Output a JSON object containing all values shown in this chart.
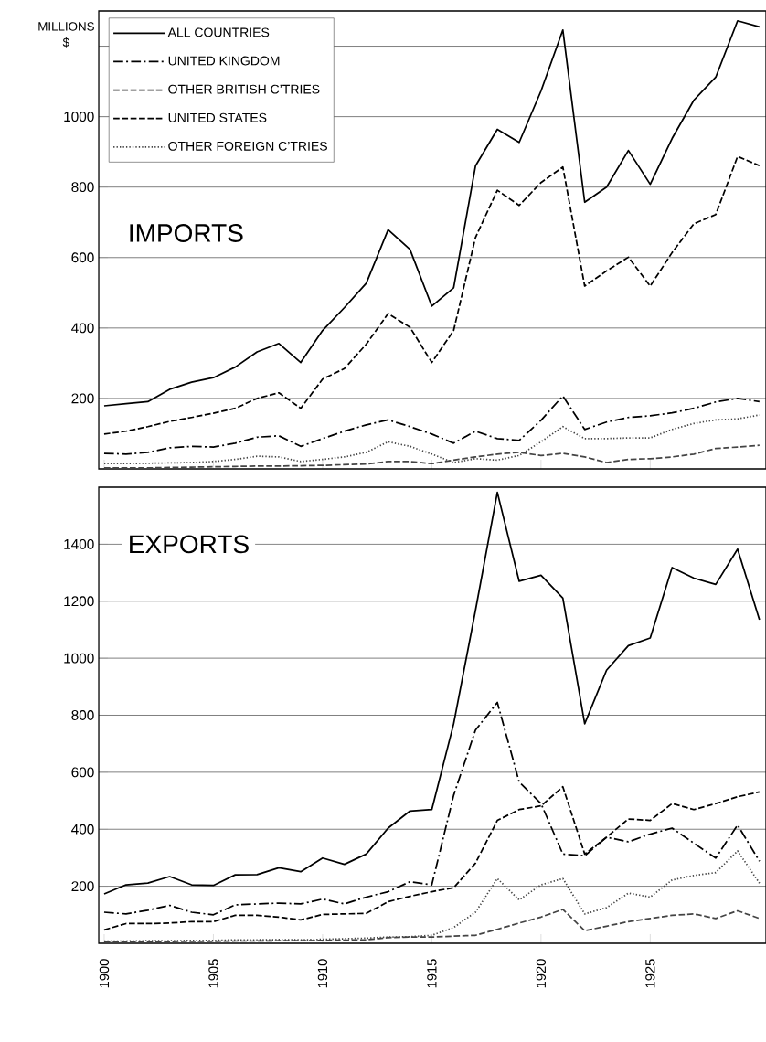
{
  "chart_data": [
    {
      "type": "line",
      "title": "IMPORTS",
      "ylabel": "MILLIONS $",
      "x": [
        1900,
        1901,
        1902,
        1903,
        1904,
        1905,
        1906,
        1907,
        1908,
        1909,
        1910,
        1911,
        1912,
        1913,
        1914,
        1915,
        1916,
        1917,
        1918,
        1919,
        1920,
        1921,
        1922,
        1923,
        1924,
        1925,
        1926,
        1927,
        1928,
        1929,
        1930
      ],
      "xlim": [
        1899.75,
        1930.3
      ],
      "ylim": [
        0,
        1300
      ],
      "xticks": [
        1900,
        1905,
        1910,
        1915,
        1920,
        1925
      ],
      "yticks": [
        200,
        400,
        600,
        800,
        1000,
        {
          "value": 1200,
          "label": null
        }
      ],
      "tick_labels": "y",
      "grid": "y",
      "legend": "top left",
      "series": [
        {
          "name": "ALL COUNTRIES",
          "color": "#000000",
          "line_style": "solid",
          "values": [
            179,
            185,
            191,
            226,
            246,
            259,
            289,
            332,
            356,
            302,
            393,
            458,
            527,
            679,
            623,
            462,
            514,
            860,
            964,
            927,
            1073,
            1246,
            757,
            800,
            904,
            808,
            938,
            1047,
            1112,
            1272,
            1255
          ]
        },
        {
          "name": "UNITED KINGDOM",
          "color": "#000000",
          "line_style": "dashdot",
          "values": [
            44,
            42,
            47,
            60,
            64,
            62,
            73,
            90,
            94,
            64,
            86,
            107,
            125,
            139,
            120,
            99,
            73,
            107,
            86,
            81,
            138,
            207,
            112,
            133,
            146,
            151,
            159,
            172,
            190,
            200,
            191
          ]
        },
        {
          "name": "OTHER BRITISH C’TRIES",
          "color": "#444444",
          "line_style": "dashed",
          "values": [
            3,
            3,
            3,
            4,
            5,
            6,
            7,
            8,
            8,
            9,
            10,
            12,
            14,
            21,
            21,
            15,
            25,
            34,
            42,
            47,
            38,
            44,
            34,
            18,
            27,
            29,
            34,
            42,
            58,
            62,
            67
          ]
        },
        {
          "name": "UNITED STATES",
          "color": "#000000",
          "line_style": "dashed",
          "values": [
            99,
            107,
            120,
            135,
            146,
            158,
            172,
            200,
            216,
            172,
            255,
            285,
            354,
            441,
            402,
            302,
            393,
            657,
            791,
            748,
            813,
            857,
            519,
            562,
            601,
            519,
            614,
            696,
            722,
            887,
            861
          ]
        },
        {
          "name": "OTHER FOREIGN C’TRIES",
          "color": "#444444",
          "line_style": "dotted",
          "values": [
            15,
            15,
            16,
            17,
            18,
            21,
            27,
            36,
            34,
            21,
            27,
            34,
            47,
            77,
            64,
            42,
            18,
            29,
            25,
            38,
            77,
            120,
            86,
            86,
            88,
            88,
            112,
            129,
            139,
            142,
            153
          ]
        }
      ]
    },
    {
      "type": "line",
      "title": "EXPORTS",
      "x": [
        1900,
        1901,
        1902,
        1903,
        1904,
        1905,
        1906,
        1907,
        1908,
        1909,
        1910,
        1911,
        1912,
        1913,
        1914,
        1915,
        1916,
        1917,
        1918,
        1919,
        1920,
        1921,
        1922,
        1923,
        1924,
        1925,
        1926,
        1927,
        1928,
        1929,
        1930
      ],
      "xlim": [
        1899.75,
        1930.3
      ],
      "ylim": [
        0,
        1600
      ],
      "xticks": [
        1900,
        1905,
        1910,
        1915,
        1920,
        1925
      ],
      "yticks": [
        200,
        400,
        600,
        800,
        1000,
        1200,
        1400
      ],
      "grid": "y",
      "series": [
        {
          "color": "#000000",
          "line_style": "solid",
          "values": [
            173,
            205,
            211,
            234,
            205,
            203,
            240,
            241,
            265,
            251,
            299,
            277,
            313,
            404,
            464,
            469,
            770,
            1168,
            1582,
            1270,
            1291,
            1211,
            770,
            958,
            1044,
            1071,
            1318,
            1281,
            1259,
            1383,
            1135
          ]
        },
        {
          "color": "#000000",
          "line_style": "dashdot",
          "values": [
            109,
            103,
            116,
            133,
            109,
            100,
            135,
            138,
            141,
            138,
            155,
            138,
            162,
            181,
            216,
            205,
            519,
            748,
            845,
            566,
            490,
            313,
            307,
            372,
            356,
            383,
            404,
            351,
            299,
            415,
            288
          ]
        },
        {
          "color": "#444444",
          "line_style": "dashed",
          "values": [
            5,
            5,
            6,
            6,
            7,
            7,
            8,
            8,
            9,
            9,
            10,
            11,
            12,
            20,
            22,
            22,
            25,
            28,
            49,
            71,
            92,
            119,
            44,
            60,
            76,
            87,
            98,
            103,
            87,
            114,
            87
          ]
        },
        {
          "color": "#000000",
          "line_style": "dashed",
          "values": [
            47,
            69,
            69,
            71,
            76,
            76,
            98,
            98,
            92,
            82,
            101,
            103,
            105,
            146,
            165,
            181,
            195,
            281,
            431,
            469,
            482,
            549,
            313,
            372,
            436,
            431,
            490,
            469,
            490,
            514,
            531
          ]
        },
        {
          "color": "#444444",
          "line_style": "dotted",
          "values": [
            8,
            8,
            9,
            9,
            10,
            10,
            12,
            12,
            13,
            12,
            14,
            16,
            18,
            22,
            23,
            28,
            55,
            109,
            227,
            152,
            205,
            227,
            103,
            125,
            176,
            162,
            222,
            238,
            248,
            324,
            211
          ]
        }
      ]
    }
  ]
}
